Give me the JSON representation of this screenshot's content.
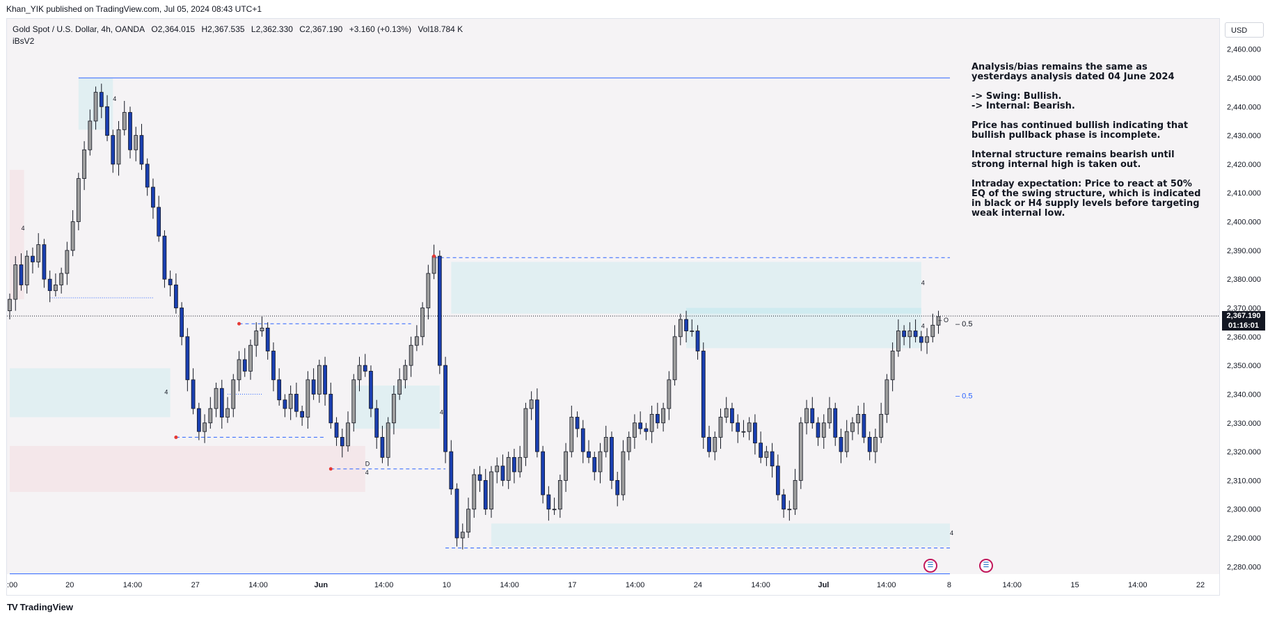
{
  "publisher_line": "Khan_YIK published on TradingView.com, Jul 05, 2024 08:43 UTC+1",
  "legend": {
    "symbol": "Gold Spot / U.S. Dollar, 4h, OANDA",
    "open": "O2,364.015",
    "high": "H2,367.535",
    "low": "L2,362.330",
    "close": "C2,367.190",
    "change": "+3.160 (+0.13%)",
    "volume": "Vol18.784 K",
    "indicator": "iBsV2"
  },
  "currency": "USD",
  "price_tag": {
    "price": "2,367.190",
    "countdown": "01:16:01"
  },
  "brand": {
    "logo": "TV",
    "name": "TradingView"
  },
  "analysis": [
    "Analysis/bias remains the same as yesterdays analysis dated 04 June 2024",
    "-> Swing:  Bullish.\n-> Internal:  Bearish.",
    "Price has continued bullish indicating that bullish pullback phase is incomplete.",
    "Internal structure remains bearish until strong internal high is taken out.",
    "Intraday expectation: Price to react at 50% EQ of the swing structure, which is indicated in black or H4 supply levels before targeting weak internal low."
  ],
  "chart_data": {
    "type": "candlestick",
    "ylim": [
      2275,
      2465
    ],
    "y_ticks": [
      "2,460.000",
      "2,450.000",
      "2,440.000",
      "2,430.000",
      "2,420.000",
      "2,410.000",
      "2,400.000",
      "2,390.000",
      "2,380.000",
      "2,370.000",
      "2,360.000",
      "2,350.000",
      "2,340.000",
      "2,330.000",
      "2,320.000",
      "2,310.000",
      "2,300.000",
      "2,290.000",
      "2,280.000"
    ],
    "x_ticks": [
      ":00",
      "20",
      "14:00",
      "27",
      "14:00",
      "Jun",
      "14:00",
      "10",
      "14:00",
      "17",
      "14:00",
      "24",
      "14:00",
      "Jul",
      "14:00",
      "8",
      "14:00",
      "15",
      "14:00",
      "22"
    ],
    "bold_x_ticks": [
      "Jun",
      "Jul"
    ],
    "current_price": 2367.19,
    "closes": [
      2373,
      2385,
      2378,
      2388,
      2386,
      2392,
      2380,
      2376,
      2378,
      2382,
      2390,
      2400,
      2415,
      2425,
      2435,
      2445,
      2440,
      2430,
      2420,
      2432,
      2438,
      2425,
      2430,
      2420,
      2412,
      2405,
      2395,
      2380,
      2378,
      2370,
      2360,
      2345,
      2335,
      2327,
      2330,
      2335,
      2342,
      2332,
      2335,
      2345,
      2352,
      2348,
      2357,
      2362,
      2363,
      2355,
      2345,
      2338,
      2335,
      2340,
      2334,
      2332,
      2345,
      2340,
      2350,
      2340,
      2330,
      2325,
      2322,
      2330,
      2345,
      2350,
      2348,
      2335,
      2325,
      2318,
      2330,
      2340,
      2345,
      2350,
      2357,
      2360,
      2370,
      2382,
      2388,
      2350,
      2320,
      2307,
      2290,
      2292,
      2300,
      2312,
      2310,
      2300,
      2313,
      2315,
      2310,
      2318,
      2313,
      2318,
      2335,
      2338,
      2320,
      2305,
      2300,
      2300,
      2310,
      2320,
      2332,
      2328,
      2320,
      2318,
      2313,
      2320,
      2325,
      2310,
      2305,
      2320,
      2325,
      2330,
      2328,
      2327,
      2333,
      2330,
      2335,
      2345,
      2360,
      2366,
      2362,
      2362,
      2355,
      2325,
      2320,
      2325,
      2332,
      2335,
      2330,
      2327,
      2327,
      2330,
      2323,
      2318,
      2320,
      2315,
      2305,
      2300,
      2300,
      2310,
      2330,
      2335,
      2330,
      2325,
      2330,
      2335,
      2325,
      2320,
      2327,
      2330,
      2333,
      2325,
      2320,
      2325,
      2333,
      2345,
      2355,
      2362,
      2360,
      2362,
      2360,
      2358,
      2360,
      2364,
      2367
    ],
    "x_domain": [
      0,
      164
    ],
    "x_min_label_pos": 0,
    "lines": [
      {
        "y": 2450.0,
        "x0": 12,
        "x1": 164,
        "style": "solid"
      },
      {
        "y": 2277.5,
        "x0": 0,
        "x1": 164,
        "style": "solid"
      },
      {
        "y": 2387.5,
        "x0": 74,
        "x1": 164,
        "style": "dashed"
      },
      {
        "y": 2286.5,
        "x0": 76,
        "x1": 164,
        "style": "dashed"
      },
      {
        "y": 2364.5,
        "x0": 40,
        "x1": 70,
        "style": "dashed"
      },
      {
        "y": 2325.0,
        "x0": 29,
        "x1": 55,
        "style": "dashed"
      },
      {
        "y": 2314.0,
        "x0": 56,
        "x1": 76,
        "style": "dashed"
      },
      {
        "y": 2373.5,
        "x0": 7,
        "x1": 25,
        "style": "dotted"
      },
      {
        "y": 2340.0,
        "x0": 38,
        "x1": 44,
        "style": "dotted"
      }
    ],
    "zones": [
      {
        "x0": 0,
        "x1": 2.5,
        "y0": 2373,
        "y1": 2418,
        "kind": "supply"
      },
      {
        "x0": 12,
        "x1": 18,
        "y0": 2432,
        "y1": 2450,
        "kind": "demand"
      },
      {
        "x0": 0,
        "x1": 28,
        "y0": 2332,
        "y1": 2349,
        "kind": "demand"
      },
      {
        "x0": 0,
        "x1": 62,
        "y0": 2306,
        "y1": 2322,
        "kind": "supply"
      },
      {
        "x0": 60,
        "x1": 75,
        "y0": 2328,
        "y1": 2343,
        "kind": "demand"
      },
      {
        "x0": 77,
        "x1": 159,
        "y0": 2368,
        "y1": 2386,
        "kind": "demand"
      },
      {
        "x0": 118,
        "x1": 159,
        "y0": 2356,
        "y1": 2370,
        "kind": "demand"
      },
      {
        "x0": 84,
        "x1": 164,
        "y0": 2287,
        "y1": 2295,
        "kind": "demand"
      }
    ],
    "pivot_points": [
      {
        "x": 40,
        "y": 2364.5
      },
      {
        "x": 29,
        "y": 2325.0
      },
      {
        "x": 56,
        "y": 2314.0
      },
      {
        "x": 74,
        "y": 2388.0
      }
    ],
    "marker_labels": [
      {
        "x": 2,
        "y": 2397,
        "text": "4"
      },
      {
        "x": 18,
        "y": 2442,
        "text": "4"
      },
      {
        "x": 27,
        "y": 2340,
        "text": "4"
      },
      {
        "x": 62,
        "y": 2312,
        "text": "4"
      },
      {
        "x": 62,
        "y": 2315,
        "text": "D"
      },
      {
        "x": 75,
        "y": 2333,
        "text": "4"
      },
      {
        "x": 159,
        "y": 2378,
        "text": "4"
      },
      {
        "x": 159,
        "y": 2363,
        "text": "4"
      },
      {
        "x": 164,
        "y": 2291,
        "text": "4"
      },
      {
        "x": 162,
        "y": 2365,
        "text": "– O"
      }
    ],
    "eq_labels": [
      {
        "y": 2364.5,
        "text": "– 0.5",
        "color": "#131722"
      },
      {
        "y": 2339.5,
        "text": "– 0.5",
        "color": "#2962ff"
      }
    ]
  }
}
